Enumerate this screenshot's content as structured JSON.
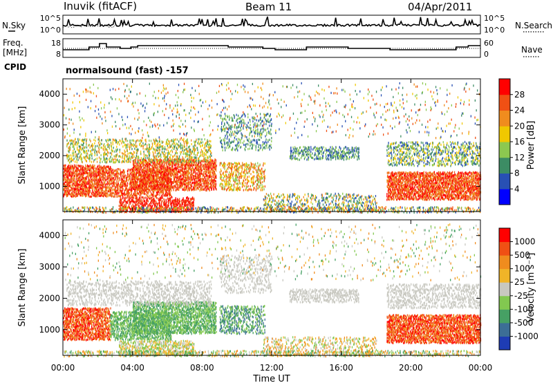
{
  "header": {
    "station": "Inuvik (fitACF)",
    "beam": "Beam 11",
    "date": "04/Apr/2011"
  },
  "noise_panel": {
    "left_label": "N.Sky",
    "right_label": "N.Search",
    "left_ticks": [
      "10^5",
      "10^0"
    ],
    "right_ticks": [
      "10^5",
      "10^0"
    ]
  },
  "freq_panel": {
    "left_label_1": "Freq.",
    "left_label_2": "[MHz]",
    "right_label": "Nave",
    "left_ticks": [
      "18",
      "8"
    ],
    "right_ticks": [
      "60",
      "0"
    ]
  },
  "cpid": {
    "label": "CPID",
    "value": "normalsound (fast) -157"
  },
  "chart_data": [
    {
      "type": "heatmap",
      "name": "power",
      "ylabel": "Slant Range [km]",
      "y_ticks": [
        1000,
        2000,
        3000,
        4000
      ],
      "ylim": [
        180,
        4500
      ],
      "xlim": [
        0,
        24
      ],
      "colorbar_label": "Power [dB]",
      "colorbar_ticks": [
        "28",
        "24",
        "20",
        "16",
        "12",
        "8",
        "4"
      ],
      "colors": [
        "#0000ff",
        "#2850b4",
        "#3c8c64",
        "#8cc850",
        "#f0c800",
        "#f08c1e",
        "#f05014",
        "#ff0000"
      ]
    },
    {
      "type": "heatmap",
      "name": "velocity",
      "ylabel": "Slant Range [km]",
      "y_ticks": [
        1000,
        2000,
        3000,
        4000
      ],
      "ylim": [
        180,
        4500
      ],
      "xlim": [
        0,
        24
      ],
      "xlabel": "Time UT",
      "x_ticks": [
        "00:00",
        "04:00",
        "08:00",
        "12:00",
        "16:00",
        "20:00",
        "00:00"
      ],
      "colorbar_label": "Velocity [m s⁻¹]",
      "colorbar_ticks": [
        "1000",
        "500",
        "100",
        "25",
        "-25",
        "-100",
        "-500",
        "-1000"
      ],
      "colors": [
        "#1e3cb4",
        "#3c6e96",
        "#46a064",
        "#82c850",
        "#c8c8c0",
        "#f0b428",
        "#f08c1e",
        "#f05014",
        "#ff0000"
      ]
    }
  ]
}
